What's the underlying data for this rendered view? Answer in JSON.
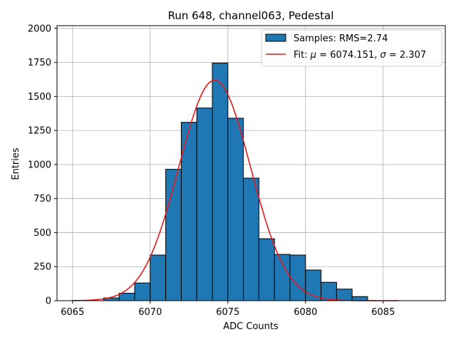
{
  "chart_data": {
    "type": "bar",
    "title": "Run 648, channel063, Pedestal",
    "xlabel": "ADC Counts",
    "ylabel": "Entries",
    "xlim": [
      6064,
      6089
    ],
    "ylim": [
      0,
      2020
    ],
    "xticks": [
      6065,
      6070,
      6075,
      6080,
      6085
    ],
    "yticks": [
      0,
      250,
      500,
      750,
      1000,
      1250,
      1500,
      1750,
      2000
    ],
    "grid": true,
    "legend_position": "top-right",
    "series": [
      {
        "name": "Samples: RMS=2.74",
        "kind": "histogram",
        "color": "#1f77b4",
        "edge_color": "#000000",
        "bins": [
          {
            "x0": 6067,
            "x1": 6068,
            "count": 20
          },
          {
            "x0": 6068,
            "x1": 6069,
            "count": 55
          },
          {
            "x0": 6069,
            "x1": 6070,
            "count": 130
          },
          {
            "x0": 6070,
            "x1": 6071,
            "count": 335
          },
          {
            "x0": 6071,
            "x1": 6072,
            "count": 965
          },
          {
            "x0": 6072,
            "x1": 6073,
            "count": 1310
          },
          {
            "x0": 6073,
            "x1": 6074,
            "count": 1415
          },
          {
            "x0": 6074,
            "x1": 6075,
            "count": 1745
          },
          {
            "x0": 6075,
            "x1": 6076,
            "count": 1340
          },
          {
            "x0": 6076,
            "x1": 6077,
            "count": 900
          },
          {
            "x0": 6077,
            "x1": 6078,
            "count": 455
          },
          {
            "x0": 6078,
            "x1": 6079,
            "count": 340
          },
          {
            "x0": 6079,
            "x1": 6080,
            "count": 335
          },
          {
            "x0": 6080,
            "x1": 6081,
            "count": 225
          },
          {
            "x0": 6081,
            "x1": 6082,
            "count": 135
          },
          {
            "x0": 6082,
            "x1": 6083,
            "count": 85
          },
          {
            "x0": 6083,
            "x1": 6084,
            "count": 30
          }
        ]
      },
      {
        "name": "Fit: μ = 6074.151, σ = 2.307",
        "kind": "gaussian",
        "color": "#e41a1c",
        "mu": 6074.151,
        "sigma": 2.307,
        "amplitude": 1620,
        "x_range": [
          6065,
          6086
        ]
      }
    ],
    "legend": {
      "hist_prefix": "Samples: RMS=2.74",
      "fit_prefix": "Fit: ",
      "fit_mu_symbol": "μ",
      "fit_mu_value": " = 6074.151, ",
      "fit_sigma_symbol": "σ",
      "fit_sigma_value": " = 2.307"
    }
  }
}
